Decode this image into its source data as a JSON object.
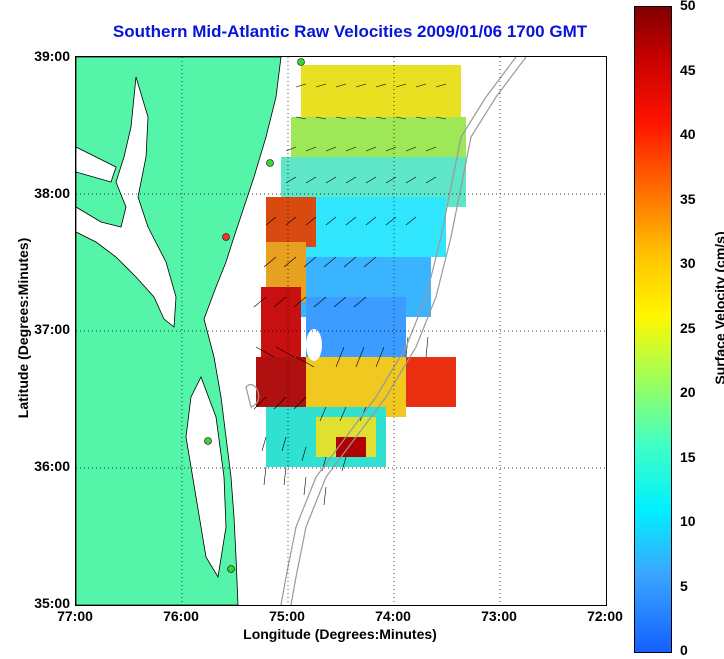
{
  "title": "Southern Mid-Atlantic Raw Velocities 2009/01/06 1700 GMT",
  "x_axis": {
    "label": "Longitude (Degrees:Minutes)",
    "ticks": [
      "77:00",
      "76:00",
      "75:00",
      "74:00",
      "73:00",
      "72:00"
    ]
  },
  "y_axis": {
    "label": "Latitude (Degrees:Minutes)",
    "ticks": [
      "39:00",
      "38:00",
      "37:00",
      "36:00",
      "35:00"
    ]
  },
  "colorbar": {
    "label": "Surface Velocity (cm/s)",
    "ticks": [
      "50",
      "45",
      "40",
      "35",
      "30",
      "25",
      "20",
      "15",
      "10",
      "5",
      "0"
    ],
    "range": [
      0,
      50
    ]
  },
  "colors": {
    "land": "#55f5a9",
    "coast": "#000000",
    "bathymetry": "#999999",
    "title": "#0a14d8"
  },
  "map": {
    "lon_range": [
      -77,
      -72
    ],
    "lat_range": [
      35,
      39
    ],
    "grid": true
  }
}
